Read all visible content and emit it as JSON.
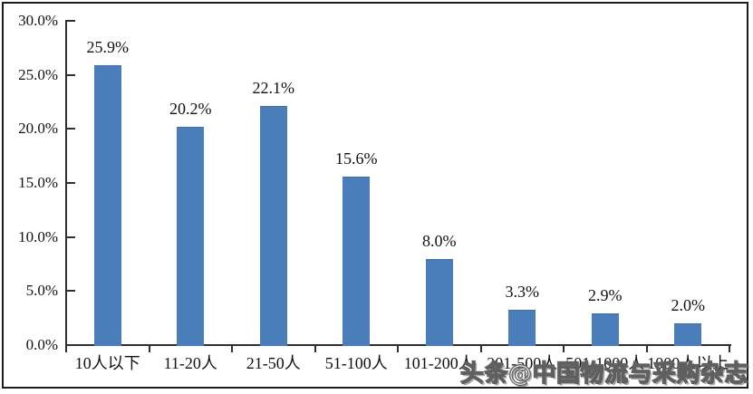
{
  "watermark": "头条@中国物流与采购杂志",
  "chart_data": {
    "type": "bar",
    "title": "",
    "categories": [
      "10人以下",
      "11-20人",
      "21-50人",
      "51-100人",
      "101-200人",
      "201-500人",
      "501-1000人",
      "1000人以上"
    ],
    "values": [
      25.9,
      20.2,
      22.1,
      15.6,
      8.0,
      3.3,
      2.9,
      2.0
    ],
    "data_labels": [
      "25.9%",
      "20.2%",
      "22.1%",
      "15.6%",
      "8.0%",
      "3.3%",
      "2.9%",
      "2.0%"
    ],
    "y_tick_labels": [
      "0.0%",
      "5.0%",
      "10.0%",
      "15.0%",
      "20.0%",
      "25.0%",
      "30.0%"
    ],
    "ylim": [
      0,
      30
    ],
    "y_tick_step": 5,
    "grid": false,
    "legend": "none",
    "bar_color": "#4a7ebb",
    "axis_color": "#2f2f2f",
    "label_color": "#111111",
    "notes_obscured": "6th-8th category labels partially hidden behind watermark"
  }
}
